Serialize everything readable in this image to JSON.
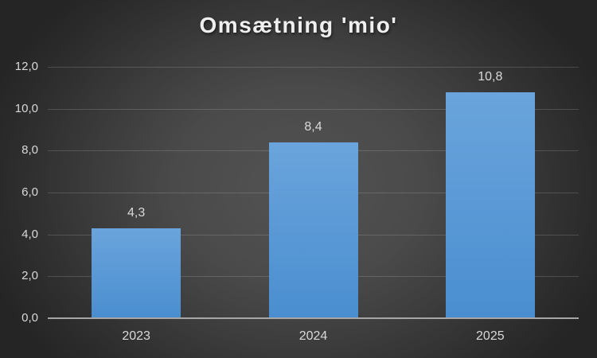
{
  "chart_data": {
    "type": "bar",
    "title": "Omsætning 'mio'",
    "categories": [
      "2023",
      "2024",
      "2025"
    ],
    "values": [
      4.3,
      8.4,
      10.8
    ],
    "value_labels": [
      "4,3",
      "8,4",
      "10,8"
    ],
    "y_tick_labels": [
      "12,0",
      "10,0",
      "8,0",
      "6,0",
      "4,0",
      "2,0",
      "0,0"
    ],
    "y_tick_values": [
      12,
      10,
      8,
      6,
      4,
      2,
      0
    ],
    "ylim": [
      0,
      12
    ],
    "xlabel": "",
    "ylabel": "",
    "grid": true,
    "legend": "none",
    "colors": {
      "background_center": "#535353",
      "background_edge": "#252525",
      "bar_top": "#6aa4dc",
      "bar_bottom": "#4a8ed0",
      "gridline": "rgba(230,230,230,0.18)",
      "axis_line": "#a6a6a6",
      "tick_text": "#d9d9d9",
      "value_label_text": "#d9d9d9",
      "title_text": "#efefef"
    }
  }
}
